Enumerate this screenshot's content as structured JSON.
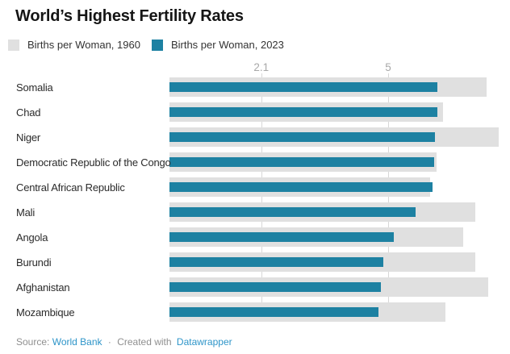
{
  "header": {
    "title": "World’s Highest Fertility Rates"
  },
  "legend": {
    "items": [
      {
        "label": "Births per Woman, 1960",
        "color": "#e0e0e0",
        "swatch_icon": "square-swatch-icon"
      },
      {
        "label": "Births per Woman, 2023",
        "color": "#1d81a2",
        "swatch_icon": "square-swatch-icon"
      }
    ]
  },
  "chart_data": {
    "type": "bar",
    "orientation": "horizontal",
    "title": "World’s Highest Fertility Rates",
    "xlabel": "",
    "ylabel": "",
    "xlim": [
      0,
      7.8
    ],
    "grid": true,
    "legend_position": "top-left",
    "axis_ticks": [
      {
        "value": 2.1,
        "label": "2.1"
      },
      {
        "value": 5,
        "label": "5"
      }
    ],
    "categories": [
      "Somalia",
      "Chad",
      "Niger",
      "Democratic Republic of the Congo",
      "Central African Republic",
      "Mali",
      "Angola",
      "Burundi",
      "Afghanistan",
      "Mozambique"
    ],
    "series": [
      {
        "name": "Births per Woman, 1960",
        "color": "#e0e0e0",
        "values": [
          7.25,
          6.25,
          7.53,
          6.11,
          5.95,
          7.0,
          6.71,
          7.0,
          7.28,
          6.31
        ]
      },
      {
        "name": "Births per Woman, 2023",
        "color": "#1d81a2",
        "values": [
          6.13,
          6.12,
          6.06,
          6.05,
          6.01,
          5.63,
          5.13,
          4.89,
          4.84,
          4.78
        ]
      }
    ]
  },
  "colors": {
    "background": "#ffffff",
    "bar_1960": "#e0e0e0",
    "bar_2023": "#1d81a2",
    "gridline": "#d8d8d8",
    "axis_label": "#a8a8a8",
    "link": "#2e95c9",
    "footer_text": "#8f8f8f"
  },
  "footer": {
    "source_label": "Source:",
    "source_link": "World Bank",
    "separator": "·",
    "created_with_label": "Created with",
    "tool_link": "Datawrapper"
  }
}
